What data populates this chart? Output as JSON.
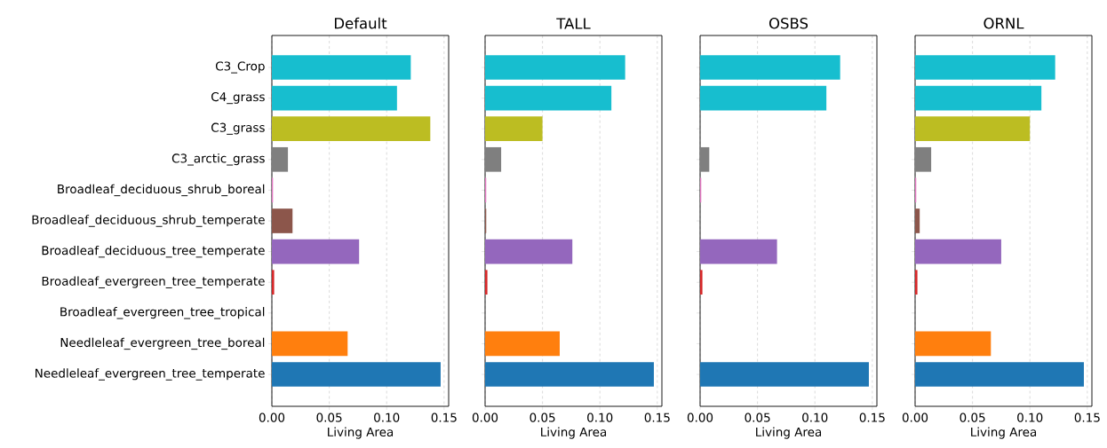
{
  "chart_data": [
    {
      "type": "bar",
      "orientation": "horizontal",
      "title": "Default",
      "xlabel": "Living Area",
      "grid": "x",
      "categories": [
        "C3_Crop",
        "C4_grass",
        "C3_grass",
        "C3_arctic_grass",
        "Broadleaf_deciduous_shrub_boreal",
        "Broadleaf_deciduous_shrub_temperate",
        "Broadleaf_deciduous_tree_temperate",
        "Broadleaf_evergreen_tree_temperate",
        "Broadleaf_evergreen_tree_tropical",
        "Needleleaf_evergreen_tree_boreal",
        "Needleleaf_evergreen_tree_temperate"
      ],
      "values": [
        0.121,
        0.109,
        0.138,
        0.014,
        0.001,
        0.018,
        0.076,
        0.002,
        0,
        0.066,
        0.147
      ],
      "colors": [
        "#17becf",
        "#17becf",
        "#bcbd22",
        "#7f7f7f",
        "#e377c2",
        "#8c564b",
        "#9467bd",
        "#d62728",
        "#2ca02c",
        "#ff7f0e",
        "#1f77b4"
      ],
      "xlim": [
        0,
        0.154
      ],
      "xticks": [
        {
          "value": 0,
          "label": "0.00"
        },
        {
          "value": 0.05,
          "label": "0.05"
        },
        {
          "value": 0.1,
          "label": "0.10"
        },
        {
          "value": 0.15,
          "label": "0.15"
        }
      ]
    },
    {
      "type": "bar",
      "orientation": "horizontal",
      "title": "TALL",
      "xlabel": "Living Area",
      "grid": "x",
      "tick_labels": "x",
      "categories": [
        null,
        null,
        null,
        null,
        null,
        null,
        null,
        null,
        null,
        null,
        null
      ],
      "values": [
        0.122,
        0.11,
        0.05,
        0.014,
        0.001,
        0.001,
        0.076,
        0.002,
        0,
        0.065,
        0.147
      ],
      "colors": [
        "#17becf",
        "#17becf",
        "#bcbd22",
        "#7f7f7f",
        "#e377c2",
        "#8c564b",
        "#9467bd",
        "#d62728",
        "#2ca02c",
        "#ff7f0e",
        "#1f77b4"
      ],
      "xlim": [
        0,
        0.154
      ],
      "xticks": [
        {
          "value": 0,
          "label": "0.00"
        },
        {
          "value": 0.05,
          "label": "0.05"
        },
        {
          "value": 0.1,
          "label": "0.10"
        },
        {
          "value": 0.15,
          "label": "0.15"
        }
      ]
    },
    {
      "type": "bar",
      "orientation": "horizontal",
      "title": "OSBS",
      "xlabel": "Living Area",
      "grid": "x",
      "tick_labels": "x",
      "categories": [
        null,
        null,
        null,
        null,
        null,
        null,
        null,
        null,
        null,
        null,
        null
      ],
      "values": [
        0.122,
        0.11,
        0,
        0.008,
        0.001,
        0,
        0.067,
        0.002,
        0,
        0,
        0.147
      ],
      "colors": [
        "#17becf",
        "#17becf",
        "#bcbd22",
        "#7f7f7f",
        "#e377c2",
        "#8c564b",
        "#9467bd",
        "#d62728",
        "#2ca02c",
        "#ff7f0e",
        "#1f77b4"
      ],
      "xlim": [
        0,
        0.154
      ],
      "xticks": [
        {
          "value": 0,
          "label": "0.00"
        },
        {
          "value": 0.05,
          "label": "0.05"
        },
        {
          "value": 0.1,
          "label": "0.10"
        },
        {
          "value": 0.15,
          "label": "0.15"
        }
      ]
    },
    {
      "type": "bar",
      "orientation": "horizontal",
      "title": "ORNL",
      "xlabel": "Living Area",
      "grid": "x",
      "tick_labels": "x",
      "categories": [
        null,
        null,
        null,
        null,
        null,
        null,
        null,
        null,
        null,
        null,
        null
      ],
      "values": [
        0.122,
        0.11,
        0.1,
        0.014,
        0.001,
        0.004,
        0.075,
        0.002,
        0,
        0.066,
        0.147
      ],
      "colors": [
        "#17becf",
        "#17becf",
        "#bcbd22",
        "#7f7f7f",
        "#e377c2",
        "#8c564b",
        "#9467bd",
        "#d62728",
        "#2ca02c",
        "#ff7f0e",
        "#1f77b4"
      ],
      "xlim": [
        0,
        0.154
      ],
      "xticks": [
        {
          "value": 0,
          "label": "0.00"
        },
        {
          "value": 0.05,
          "label": "0.05"
        },
        {
          "value": 0.1,
          "label": "0.10"
        },
        {
          "value": 0.15,
          "label": "0.15"
        }
      ]
    }
  ]
}
